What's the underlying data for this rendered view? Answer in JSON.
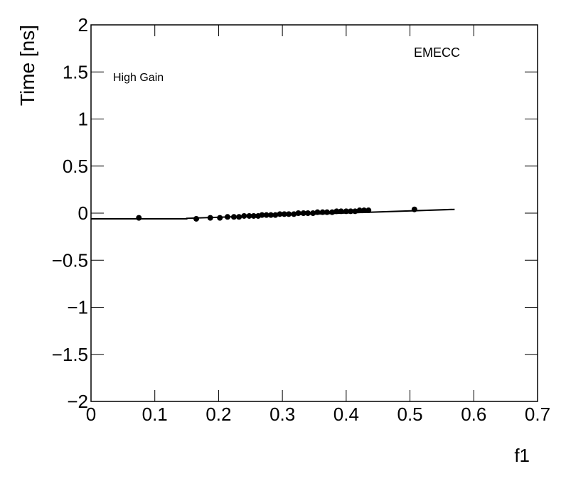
{
  "chart_data": {
    "type": "scatter",
    "xlabel": "f1",
    "ylabel": "Time [ns]",
    "annotations": [
      "High Gain",
      "EMECC"
    ],
    "xlim": [
      0,
      0.7
    ],
    "ylim": [
      -2,
      2
    ],
    "xticks": [
      0,
      0.1,
      0.2,
      0.3,
      0.4,
      0.5,
      0.6,
      0.7
    ],
    "yticks": [
      {
        "value": -2,
        "label": "−2"
      },
      {
        "value": -1.5,
        "label": "−1.5"
      },
      {
        "value": -1,
        "label": "−1"
      },
      {
        "value": -0.5,
        "label": "−0.5"
      },
      0,
      0.5,
      1,
      1.5,
      2
    ],
    "series": [
      {
        "color": "#000000",
        "mode": "markers",
        "x": [
          0.075,
          0.165,
          0.187,
          0.202,
          0.214,
          0.224,
          0.232,
          0.24,
          0.248,
          0.255,
          0.262,
          0.268,
          0.275,
          0.282,
          0.289,
          0.296,
          0.303,
          0.31,
          0.318,
          0.325,
          0.333,
          0.34,
          0.348,
          0.355,
          0.363,
          0.37,
          0.378,
          0.385,
          0.392,
          0.4,
          0.407,
          0.414,
          0.421,
          0.428,
          0.435,
          0.507
        ],
        "values": [
          -0.05,
          -0.06,
          -0.05,
          -0.05,
          -0.04,
          -0.04,
          -0.04,
          -0.03,
          -0.03,
          -0.03,
          -0.03,
          -0.02,
          -0.02,
          -0.02,
          -0.02,
          -0.01,
          -0.01,
          -0.01,
          -0.01,
          0,
          0,
          0,
          0,
          0.01,
          0.01,
          0.01,
          0.01,
          0.02,
          0.02,
          0.02,
          0.02,
          0.02,
          0.03,
          0.03,
          0.03,
          0.04
        ]
      },
      {
        "color": "#000000",
        "mode": "line",
        "x": [
          0,
          0.15,
          0.15,
          0.57
        ],
        "values": [
          -0.06,
          -0.06,
          -0.055,
          0.04
        ]
      }
    ]
  }
}
